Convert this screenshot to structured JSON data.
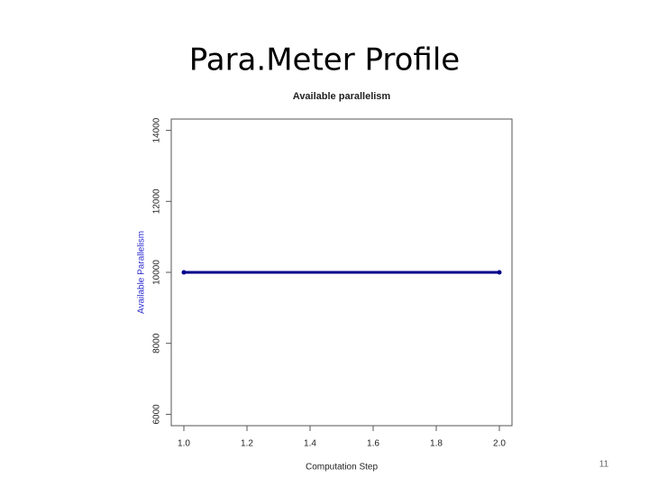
{
  "slide_title": "Para.Meter Profile",
  "page_number": "11",
  "chart_data": {
    "type": "line",
    "title": "Available parallelism",
    "x_label": "Computation Step",
    "y_label": "Available Parallelism",
    "x": [
      1,
      2
    ],
    "series": [
      {
        "name": "Available Parallelism",
        "color": "#00008b",
        "values": [
          10000,
          10000
        ]
      }
    ],
    "xlim": [
      0.96,
      2.04
    ],
    "xticks": [
      {
        "value": 1,
        "label": "1.0"
      },
      1.2,
      1.4,
      1.6,
      1.8,
      {
        "value": 2,
        "label": "2.0"
      }
    ],
    "ylim": [
      5680,
      14320
    ],
    "yticks": [
      6000,
      8000,
      10000,
      12000,
      14000
    ]
  }
}
